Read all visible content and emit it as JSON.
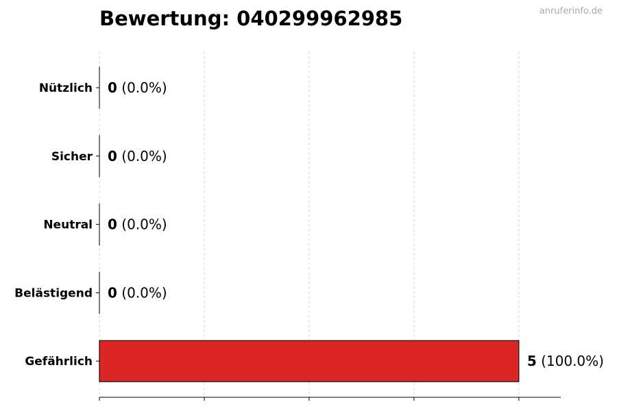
{
  "watermark": "anruferinfo.de",
  "chart_data": {
    "type": "bar",
    "orientation": "horizontal",
    "title": "Bewertung: 040299962985",
    "categories": [
      "Nützlich",
      "Sicher",
      "Neutral",
      "Belästigend",
      "Gefährlich"
    ],
    "values": [
      0,
      0,
      0,
      0,
      5
    ],
    "percent_labels": [
      "(0.0%)",
      "(0.0%)",
      "(0.0%)",
      "(0.0%)",
      "(100.0%)"
    ],
    "colors": [
      "#2ca02c",
      "#1f77b4",
      "#999999",
      "#ff7f0e",
      "#dc2626"
    ],
    "xlim": [
      0,
      5.5
    ],
    "xticks": [
      0,
      1.25,
      2.5,
      3.75,
      5
    ],
    "xtick_labels_shown": false,
    "grid": "x, dashed",
    "xlabel": "",
    "ylabel": ""
  }
}
